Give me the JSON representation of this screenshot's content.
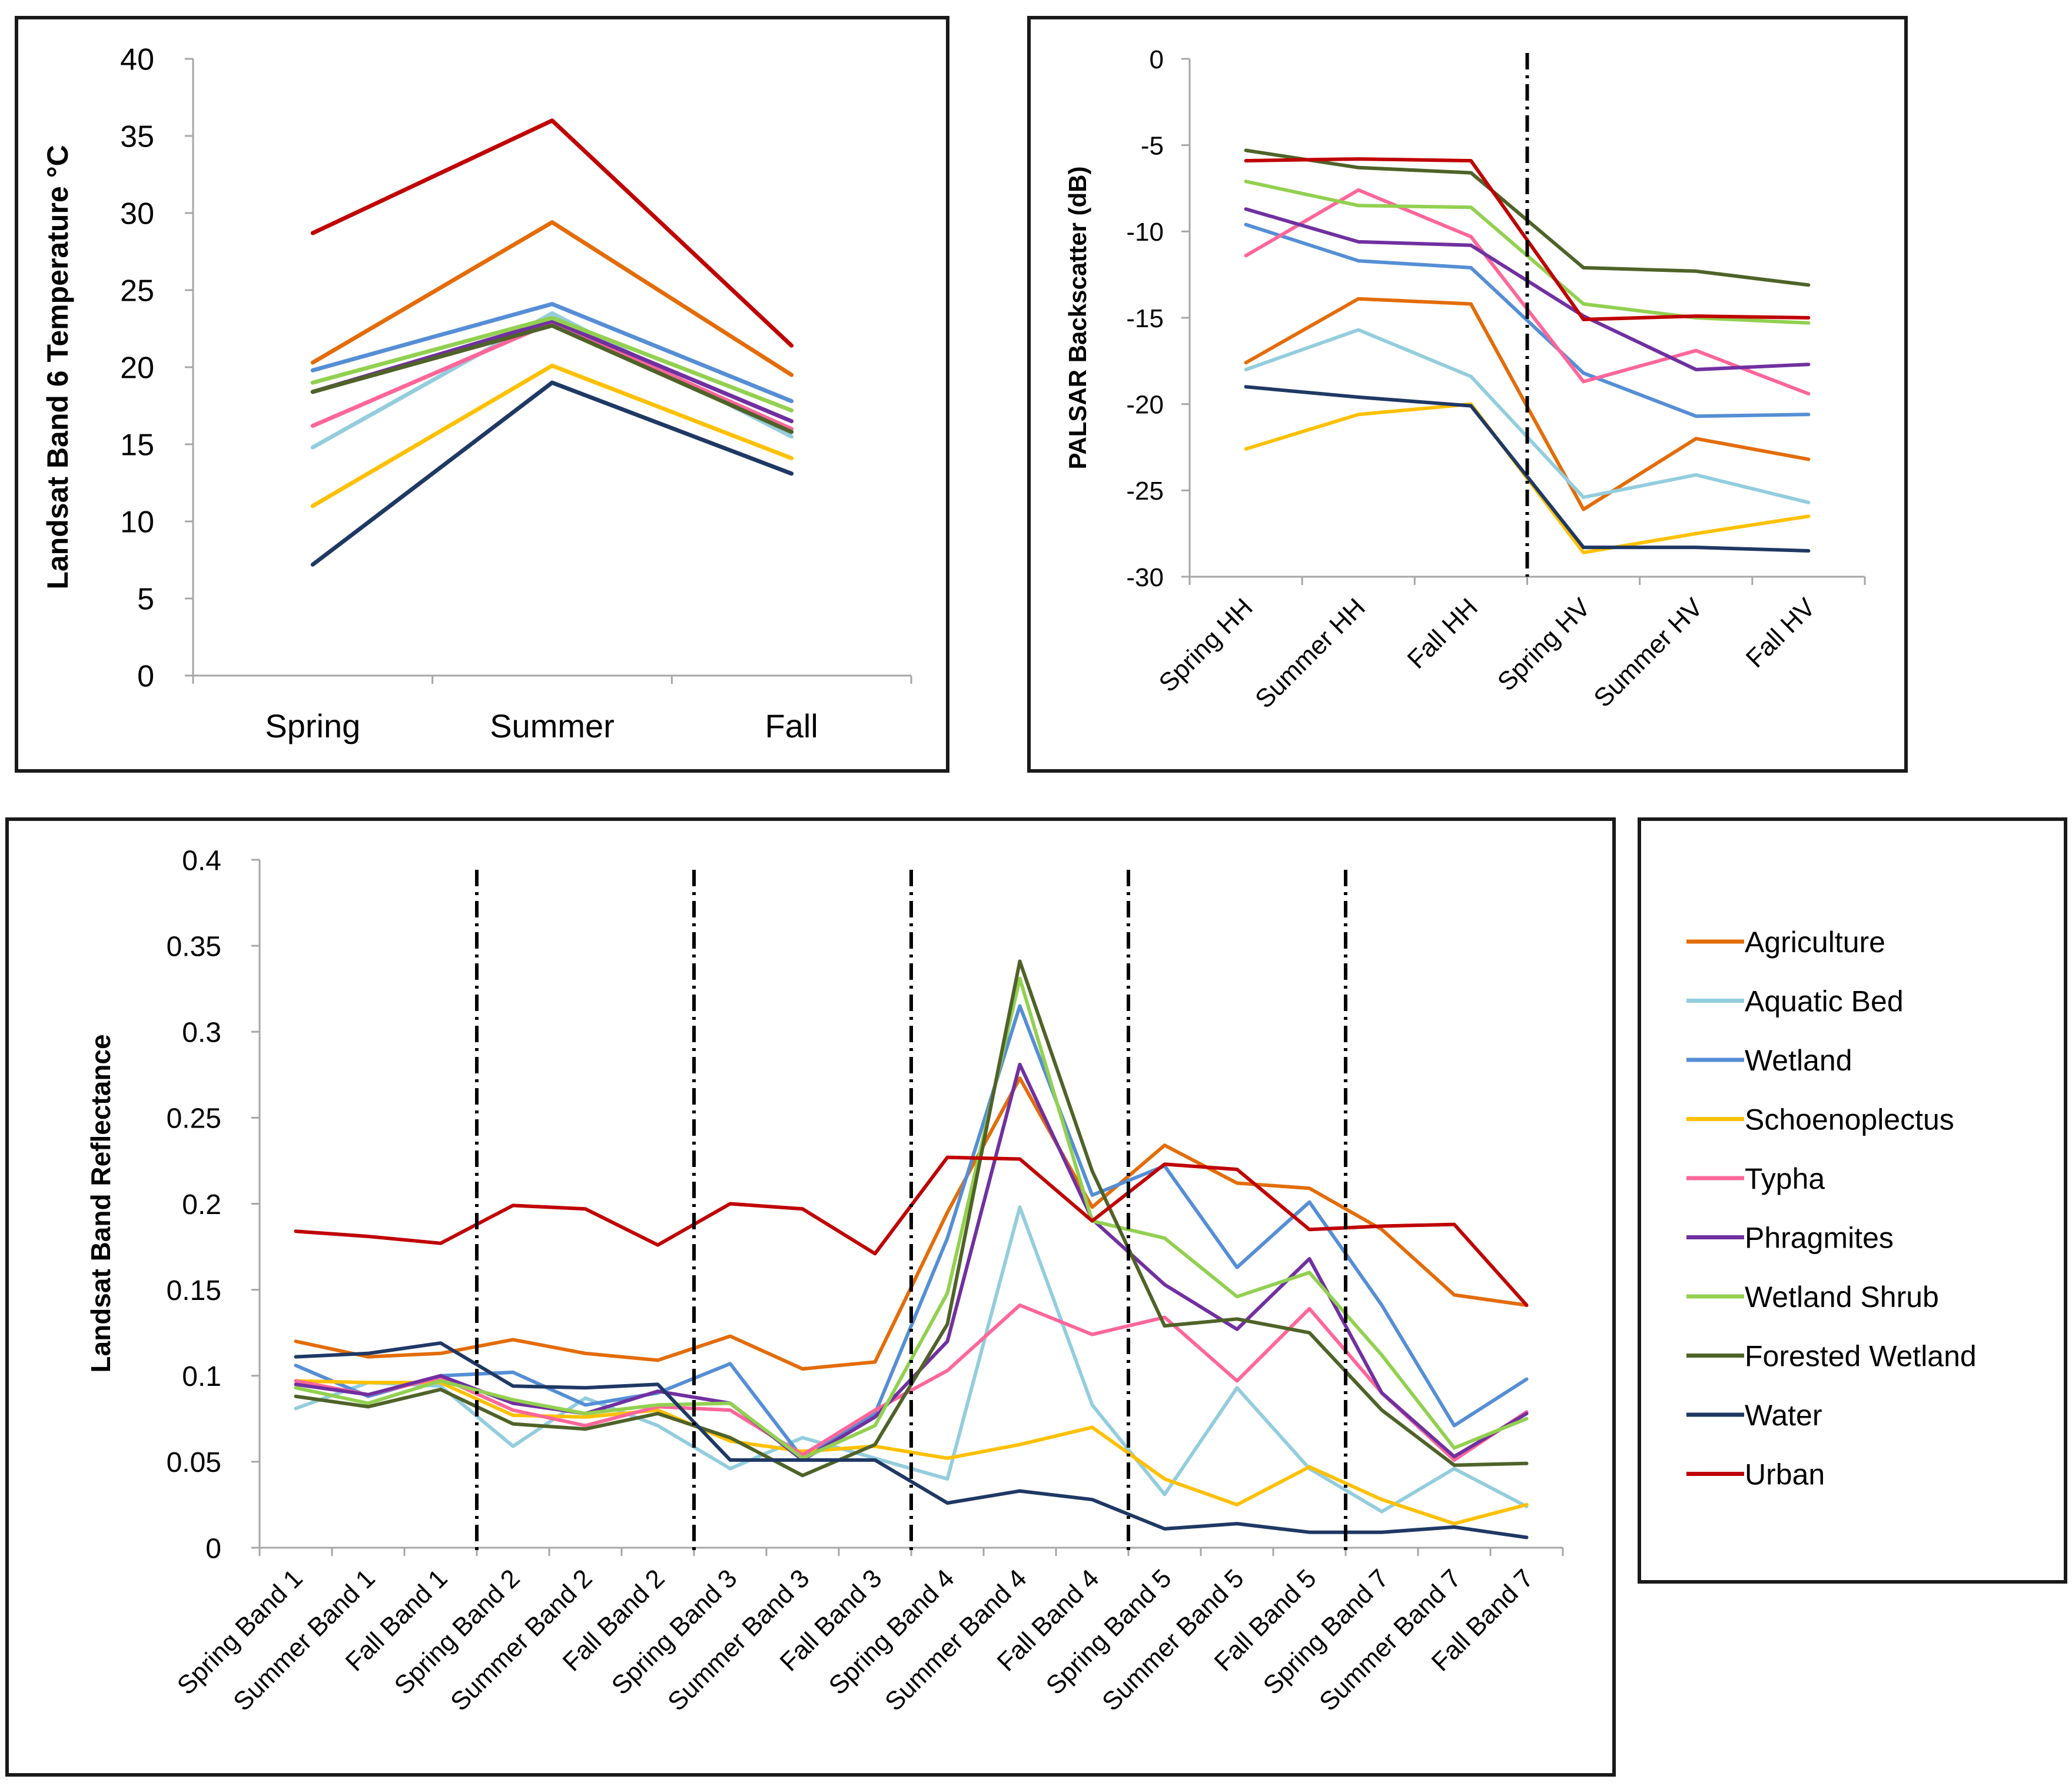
{
  "legend": [
    {
      "key": "agriculture",
      "label": "Agriculture",
      "color": "#E36C09"
    },
    {
      "key": "aquatic_bed",
      "label": "Aquatic Bed",
      "color": "#93CDDD"
    },
    {
      "key": "wetland",
      "label": "Wetland",
      "color": "#558ED5"
    },
    {
      "key": "schoenoplectus",
      "label": "Schoenoplectus",
      "color": "#FFC000"
    },
    {
      "key": "typha",
      "label": "Typha",
      "color": "#FF6699"
    },
    {
      "key": "phragmites",
      "label": "Phragmites",
      "color": "#7030A0"
    },
    {
      "key": "wetland_shrub",
      "label": "Wetland Shrub",
      "color": "#92D050"
    },
    {
      "key": "forested_wetland",
      "label": "Forested Wetland",
      "color": "#4F6228"
    },
    {
      "key": "water",
      "label": "Water",
      "color": "#1F3864"
    },
    {
      "key": "urban",
      "label": "Urban",
      "color": "#C00000"
    }
  ],
  "chart_data": [
    {
      "type": "line",
      "ylabel": "Landsat Band 6 Temperature °C",
      "xlabel": "",
      "categories": [
        "Spring",
        "Summer",
        "Fall"
      ],
      "ylim": [
        0,
        40
      ],
      "yticks": [
        "0",
        "5",
        "10",
        "15",
        "20",
        "25",
        "30",
        "35",
        "40"
      ],
      "dividers_after": [],
      "series": [
        {
          "key": "agriculture",
          "values": [
            20.3,
            29.4,
            19.5
          ]
        },
        {
          "key": "aquatic_bed",
          "values": [
            14.8,
            23.5,
            15.5
          ]
        },
        {
          "key": "wetland",
          "values": [
            19.8,
            24.1,
            17.8
          ]
        },
        {
          "key": "schoenoplectus",
          "values": [
            11.0,
            20.1,
            14.1
          ]
        },
        {
          "key": "typha",
          "values": [
            16.2,
            22.9,
            16.0
          ]
        },
        {
          "key": "phragmites",
          "values": [
            18.4,
            23.0,
            16.5
          ]
        },
        {
          "key": "wetland_shrub",
          "values": [
            19.0,
            23.2,
            17.2
          ]
        },
        {
          "key": "forested_wetland",
          "values": [
            18.4,
            22.7,
            15.8
          ]
        },
        {
          "key": "water",
          "values": [
            7.2,
            19.0,
            13.1
          ]
        },
        {
          "key": "urban",
          "values": [
            28.7,
            36.0,
            21.4
          ]
        }
      ]
    },
    {
      "type": "line",
      "ylabel": "PALSAR Backscatter (dB)",
      "xlabel": "",
      "categories": [
        "Spring HH",
        "Summer HH",
        "Fall HH",
        "Spring HV",
        "Summer HV",
        "Fall HV"
      ],
      "ylim": [
        -30,
        0
      ],
      "yticks": [
        "-30",
        "-25",
        "-20",
        "-15",
        "-10",
        "-5",
        "0"
      ],
      "dividers_after": [
        2
      ],
      "series": [
        {
          "key": "agriculture",
          "values": [
            -17.6,
            -13.9,
            -14.2,
            -26.1,
            -22.0,
            -23.2
          ]
        },
        {
          "key": "aquatic_bed",
          "values": [
            -18.0,
            -15.7,
            -18.4,
            -25.4,
            -24.1,
            -25.7
          ]
        },
        {
          "key": "wetland",
          "values": [
            -9.6,
            -11.7,
            -12.1,
            -18.2,
            -20.7,
            -20.6
          ]
        },
        {
          "key": "schoenoplectus",
          "values": [
            -22.6,
            -20.6,
            -20.0,
            -28.6,
            -27.5,
            -26.5
          ]
        },
        {
          "key": "typha",
          "values": [
            -11.4,
            -7.6,
            -10.3,
            -18.7,
            -16.9,
            -19.4
          ]
        },
        {
          "key": "phragmites",
          "values": [
            -8.7,
            -10.6,
            -10.8,
            -14.9,
            -18.0,
            -17.7
          ]
        },
        {
          "key": "wetland_shrub",
          "values": [
            -7.1,
            -8.5,
            -8.6,
            -14.2,
            -15.0,
            -15.3
          ]
        },
        {
          "key": "forested_wetland",
          "values": [
            -5.3,
            -6.3,
            -6.6,
            -12.1,
            -12.3,
            -13.1
          ]
        },
        {
          "key": "water",
          "values": [
            -19.0,
            -19.6,
            -20.1,
            -28.3,
            -28.3,
            -28.5
          ]
        },
        {
          "key": "urban",
          "values": [
            -5.9,
            -5.8,
            -5.9,
            -15.1,
            -14.9,
            -15.0
          ]
        }
      ]
    },
    {
      "type": "line",
      "ylabel": "Landsat Band Reflectance",
      "xlabel": "",
      "categories": [
        "Spring Band 1",
        "Summer Band 1",
        "Fall Band 1",
        "Spring Band 2",
        "Summer Band 2",
        "Fall Band 2",
        "Spring Band 3",
        "Summer Band 3",
        "Fall Band 3",
        "Spring Band 4",
        "Summer Band 4",
        "Fall Band 4",
        "Spring Band 5",
        "Summer Band 5",
        "Fall Band 5",
        "Spring Band 7",
        "Summer Band 7",
        "Fall Band 7"
      ],
      "ylim": [
        0,
        0.4
      ],
      "yticks": [
        "0",
        "0.05",
        "0.1",
        "0.15",
        "0.2",
        "0.25",
        "0.3",
        "0.35",
        "0.4"
      ],
      "dividers_after": [
        2,
        5,
        8,
        11,
        14
      ],
      "series": [
        {
          "key": "agriculture",
          "values": [
            0.12,
            0.111,
            0.113,
            0.121,
            0.113,
            0.109,
            0.123,
            0.104,
            0.108,
            0.195,
            0.273,
            0.198,
            0.234,
            0.212,
            0.209,
            0.185,
            0.147,
            0.141
          ]
        },
        {
          "key": "aquatic_bed",
          "values": [
            0.081,
            0.096,
            0.094,
            0.059,
            0.087,
            0.071,
            0.046,
            0.064,
            0.052,
            0.04,
            0.198,
            0.083,
            0.031,
            0.093,
            0.046,
            0.021,
            0.046,
            0.024
          ]
        },
        {
          "key": "wetland",
          "values": [
            0.106,
            0.088,
            0.1,
            0.102,
            0.083,
            0.09,
            0.107,
            0.052,
            0.078,
            0.18,
            0.315,
            0.205,
            0.222,
            0.163,
            0.201,
            0.141,
            0.071,
            0.098
          ]
        },
        {
          "key": "schoenoplectus",
          "values": [
            0.097,
            0.096,
            0.096,
            0.077,
            0.076,
            0.08,
            0.062,
            0.056,
            0.059,
            0.052,
            0.06,
            0.07,
            0.04,
            0.025,
            0.047,
            0.028,
            0.014,
            0.025
          ]
        },
        {
          "key": "typha",
          "values": [
            0.097,
            0.089,
            0.099,
            0.08,
            0.071,
            0.082,
            0.08,
            0.054,
            0.08,
            0.103,
            0.141,
            0.124,
            0.134,
            0.097,
            0.139,
            0.09,
            0.051,
            0.079
          ]
        },
        {
          "key": "phragmites",
          "values": [
            0.095,
            0.089,
            0.1,
            0.084,
            0.078,
            0.091,
            0.084,
            0.051,
            0.076,
            0.12,
            0.281,
            0.191,
            0.153,
            0.127,
            0.168,
            0.09,
            0.053,
            0.078
          ]
        },
        {
          "key": "wetland_shrub",
          "values": [
            0.093,
            0.084,
            0.097,
            0.086,
            0.078,
            0.083,
            0.084,
            0.052,
            0.071,
            0.148,
            0.331,
            0.19,
            0.18,
            0.146,
            0.16,
            0.112,
            0.058,
            0.075
          ]
        },
        {
          "key": "forested_wetland",
          "values": [
            0.088,
            0.082,
            0.092,
            0.072,
            0.069,
            0.078,
            0.064,
            0.042,
            0.06,
            0.13,
            0.341,
            0.219,
            0.129,
            0.133,
            0.125,
            0.08,
            0.048,
            0.049
          ]
        },
        {
          "key": "water",
          "values": [
            0.111,
            0.113,
            0.119,
            0.094,
            0.093,
            0.095,
            0.051,
            0.051,
            0.051,
            0.026,
            0.033,
            0.028,
            0.011,
            0.014,
            0.009,
            0.009,
            0.012,
            0.006
          ]
        },
        {
          "key": "urban",
          "values": [
            0.184,
            0.181,
            0.177,
            0.199,
            0.197,
            0.176,
            0.2,
            0.197,
            0.171,
            0.227,
            0.226,
            0.19,
            0.223,
            0.22,
            0.185,
            0.187,
            0.188,
            0.141
          ]
        }
      ]
    }
  ]
}
